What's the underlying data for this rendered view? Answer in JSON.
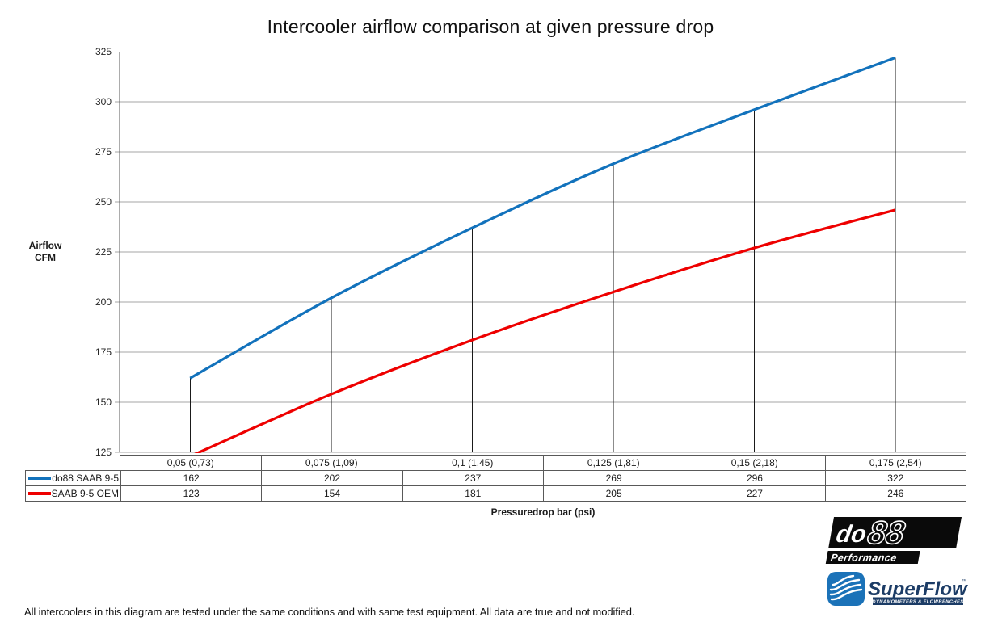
{
  "title": "Intercooler airflow comparison at given pressure drop",
  "y_axis": {
    "label_line1": "Airflow",
    "label_line2": "CFM"
  },
  "x_axis": {
    "title": "Pressuredrop bar (psi)"
  },
  "chart_data": {
    "type": "line",
    "title": "Intercooler airflow comparison at given pressure drop",
    "xlabel": "Pressuredrop bar (psi)",
    "ylabel": "Airflow CFM",
    "categories": [
      "0,05 (0,73)",
      "0,075 (1,09)",
      "0,1 (1,45)",
      "0,125 (1,81)",
      "0,15 (2,18)",
      "0,175 (2,54)"
    ],
    "series": [
      {
        "name": "do88 SAAB 9-5",
        "color": "#1272BC",
        "values": [
          162,
          202,
          237,
          269,
          296,
          322
        ]
      },
      {
        "name": "SAAB 9-5 OEM",
        "color": "#EE0000",
        "values": [
          123,
          154,
          181,
          205,
          227,
          246
        ]
      }
    ],
    "ylim": [
      125,
      325
    ],
    "yticks": [
      325,
      300,
      275,
      250,
      225,
      200,
      175,
      150,
      125
    ],
    "grid": "horizontal-gridlines",
    "legend_position": "table-left-column",
    "drop_lines_from_series": "do88 SAAB 9-5",
    "line_style": "smooth"
  },
  "footnote": "All intercoolers in this diagram are tested under the same conditions and with same test equipment. All data are true and not modified.",
  "logos": {
    "do88": {
      "name_part1": "do",
      "name_part2": "88",
      "subtext": "Performance"
    },
    "superflow": {
      "text": "SuperFlow",
      "tm": "™",
      "subtext": "DYNAMOMETERS & FLOWBENCHES"
    }
  },
  "colors": {
    "series_blue": "#1272BC",
    "series_red": "#EE0000",
    "gridline": "#A6A6A6",
    "axis_line": "#595959",
    "drop_line": "#1A1A1A",
    "table_border": "#595959",
    "superflow_blue": "#1B72B8",
    "superflow_navy": "#1C3C66",
    "logo_black": "#0A0A0A"
  }
}
